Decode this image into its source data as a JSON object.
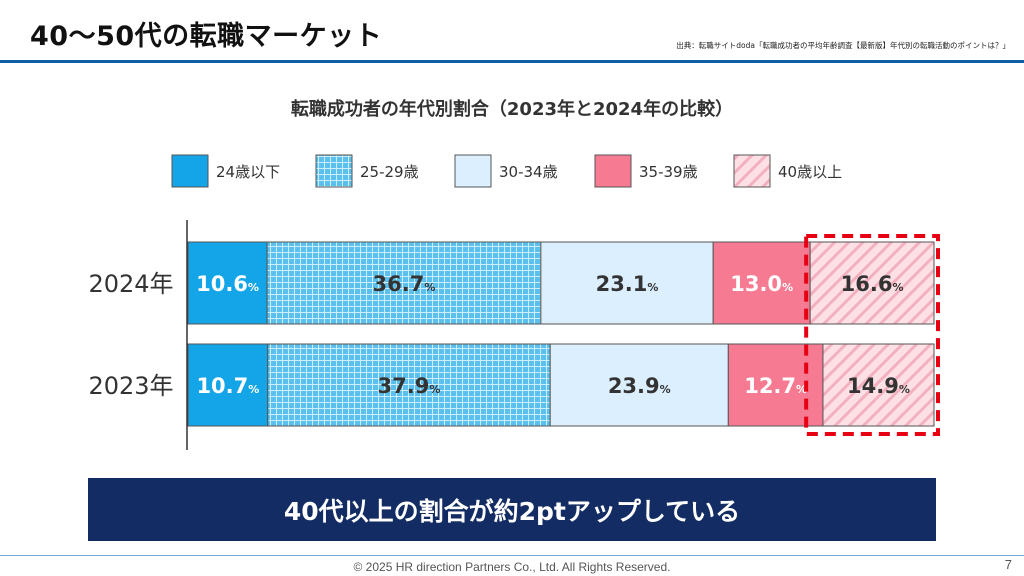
{
  "header": {
    "title": "40～50代の転職マーケット",
    "source": "出典：転職サイトdoda「転職成功者の平均年齢調査【最新版】年代別の転職活動のポイントは？」"
  },
  "chart_data": {
    "type": "bar",
    "orientation": "horizontal-stacked-100",
    "title": "転職成功者の年代別割合（2023年と2024年の比較）",
    "categories": [
      "2024年",
      "2023年"
    ],
    "unit": "%",
    "series": [
      {
        "name": "24歳以下",
        "values": [
          10.6,
          10.7
        ],
        "color": "#14a5e8",
        "pattern": "solid",
        "label_color": "#ffffff"
      },
      {
        "name": "25-29歳",
        "values": [
          36.7,
          37.9
        ],
        "color": "#5cc0ee",
        "pattern": "grid",
        "label_color": "#333333"
      },
      {
        "name": "30-34歳",
        "values": [
          23.1,
          23.9
        ],
        "color": "#dcefff",
        "pattern": "solid",
        "label_color": "#333333"
      },
      {
        "name": "35-39歳",
        "values": [
          13.0,
          12.7
        ],
        "color": "#f57a92",
        "pattern": "solid",
        "label_color": "#ffffff"
      },
      {
        "name": "40歳以上",
        "values": [
          16.6,
          14.9
        ],
        "color": "#fde0e6",
        "pattern": "stripe",
        "label_color": "#333333"
      }
    ],
    "highlight_series": "40歳以上",
    "highlight_color": "#e60012"
  },
  "banner": {
    "text": "40代以上の割合が約2ptアップしている"
  },
  "footer": {
    "copyright": "© 2025 HR direction Partners Co., Ltd. All Rights Reserved.",
    "page_number": "7"
  }
}
